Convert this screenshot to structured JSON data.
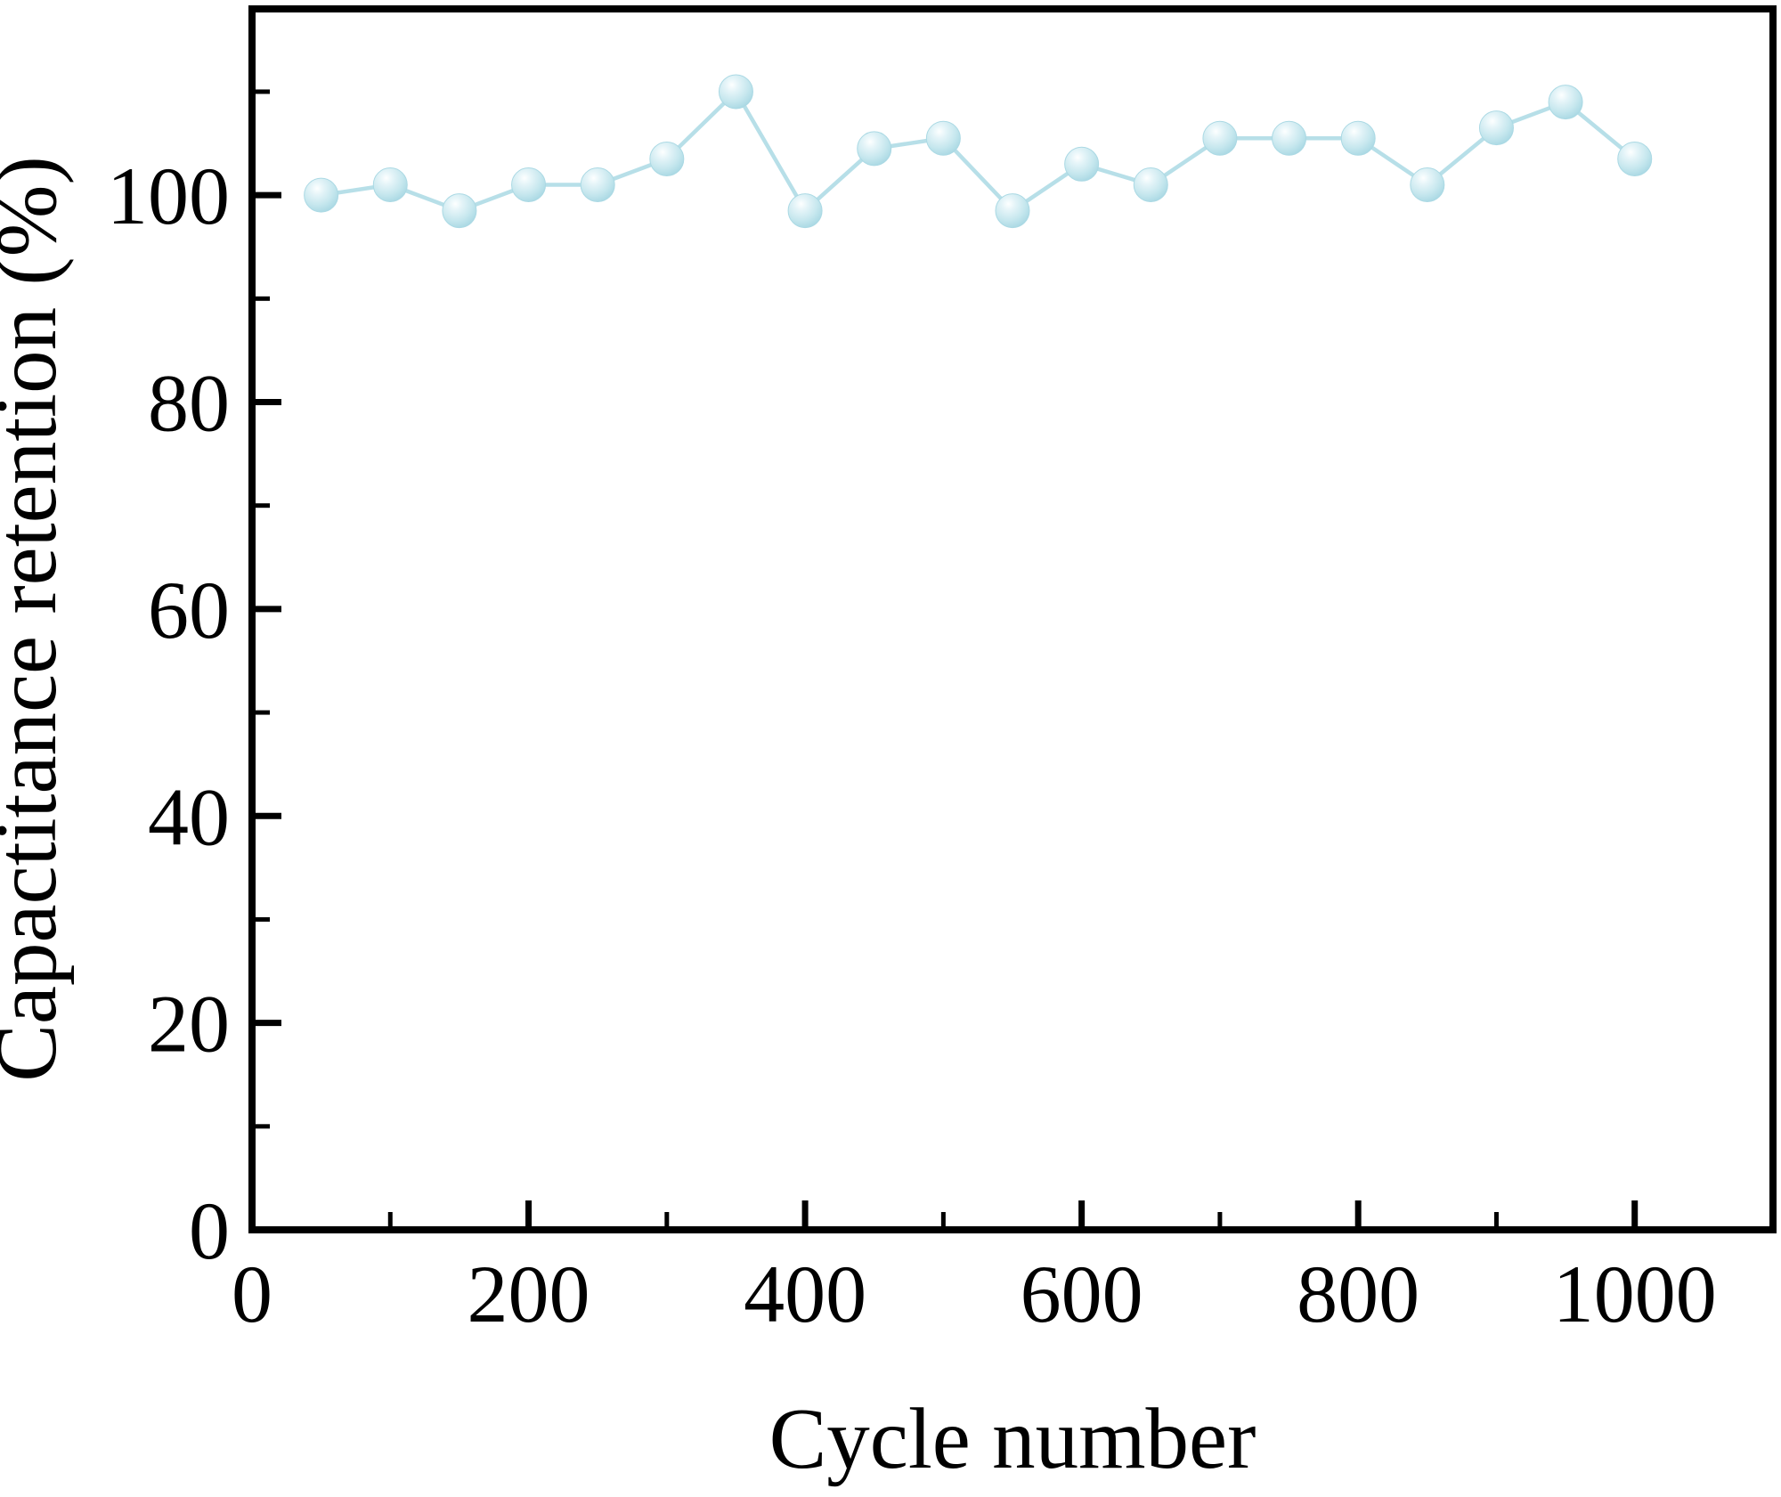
{
  "figure": {
    "background": "#ffffff",
    "frame_color": "#000000"
  },
  "chart_data": {
    "type": "line",
    "title": "",
    "xlabel": "Cycle number",
    "ylabel": "Capactitance retention (%)",
    "x": [
      50,
      100,
      150,
      200,
      250,
      300,
      350,
      400,
      450,
      500,
      550,
      600,
      650,
      700,
      750,
      800,
      850,
      900,
      950,
      1000
    ],
    "series": [
      {
        "name": "Capacitance retention",
        "values": [
          100,
          101,
          98.5,
          101,
          101,
          103.5,
          110,
          98.5,
          104.5,
          105.5,
          98.5,
          103,
          101,
          105.5,
          105.5,
          105.5,
          101,
          106.5,
          109,
          103.5
        ]
      }
    ],
    "xlim": [
      0,
      1100
    ],
    "ylim": [
      0,
      118
    ],
    "x_major_ticks": [
      0,
      200,
      400,
      600,
      800,
      1000
    ],
    "x_minor_ticks": [
      100,
      300,
      500,
      700,
      900
    ],
    "y_major_ticks": [
      0,
      20,
      40,
      60,
      80,
      100
    ],
    "y_minor_ticks": [
      10,
      30,
      50,
      70,
      90,
      110
    ],
    "grid": false,
    "legend": false,
    "tick_direction": "in",
    "line_color": "#b7dfe8",
    "marker_fill": "#c6e7ee",
    "marker_highlight": "#fbfeff",
    "marker_edge": "#abd9e4",
    "frame_color": "#000000"
  }
}
